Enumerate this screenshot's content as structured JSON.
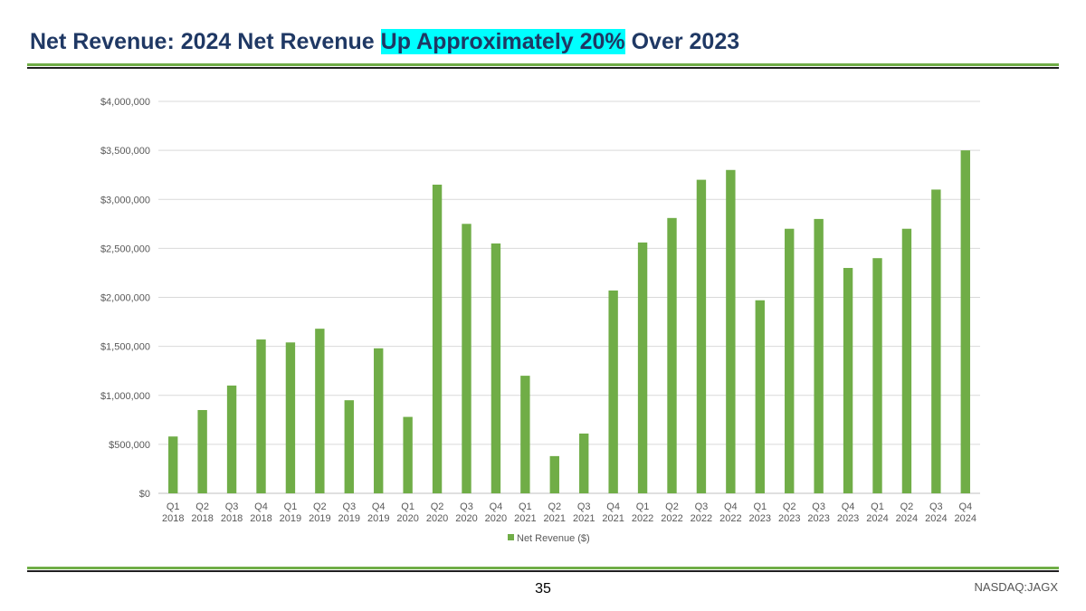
{
  "slide": {
    "title_part1": "Net Revenue: 2024 Net Revenue ",
    "title_highlight": "Up Approximately 20%",
    "title_part2": " Over 2023",
    "page_number": "35",
    "ticker": "NASDAQ:JAGX",
    "highlight_color": "#00ffff",
    "title_color": "#1f3864",
    "accent_color": "#70ad47"
  },
  "chart_data": {
    "type": "bar",
    "title": "",
    "xlabel": "",
    "ylabel": "",
    "ylim": [
      0,
      4000000
    ],
    "y_ticks": [
      0,
      500000,
      1000000,
      1500000,
      2000000,
      2500000,
      3000000,
      3500000,
      4000000
    ],
    "y_tick_labels": [
      "$0",
      "$500,000",
      "$1,000,000",
      "$1,500,000",
      "$2,000,000",
      "$2,500,000",
      "$3,000,000",
      "$3,500,000",
      "$4,000,000"
    ],
    "grid": true,
    "legend_position": "bottom",
    "categories": [
      [
        "Q1",
        "2018"
      ],
      [
        "Q2",
        "2018"
      ],
      [
        "Q3",
        "2018"
      ],
      [
        "Q4",
        "2018"
      ],
      [
        "Q1",
        "2019"
      ],
      [
        "Q2",
        "2019"
      ],
      [
        "Q3",
        "2019"
      ],
      [
        "Q4",
        "2019"
      ],
      [
        "Q1",
        "2020"
      ],
      [
        "Q2",
        "2020"
      ],
      [
        "Q3",
        "2020"
      ],
      [
        "Q4",
        "2020"
      ],
      [
        "Q1",
        "2021"
      ],
      [
        "Q2",
        "2021"
      ],
      [
        "Q3",
        "2021"
      ],
      [
        "Q4",
        "2021"
      ],
      [
        "Q1",
        "2022"
      ],
      [
        "Q2",
        "2022"
      ],
      [
        "Q3",
        "2022"
      ],
      [
        "Q4",
        "2022"
      ],
      [
        "Q1",
        "2023"
      ],
      [
        "Q2",
        "2023"
      ],
      [
        "Q3",
        "2023"
      ],
      [
        "Q4",
        "2023"
      ],
      [
        "Q1",
        "2024"
      ],
      [
        "Q2",
        "2024"
      ],
      [
        "Q3",
        "2024"
      ],
      [
        "Q4",
        "2024"
      ]
    ],
    "series": [
      {
        "name": "Net Revenue ($)",
        "color": "#70ad47",
        "values": [
          580000,
          850000,
          1100000,
          1570000,
          1540000,
          1680000,
          950000,
          1480000,
          780000,
          3150000,
          2750000,
          2550000,
          1200000,
          380000,
          610000,
          2070000,
          2560000,
          2810000,
          3200000,
          3300000,
          1970000,
          2700000,
          2800000,
          2300000,
          2400000,
          2700000,
          3100000,
          3500000
        ]
      }
    ]
  }
}
